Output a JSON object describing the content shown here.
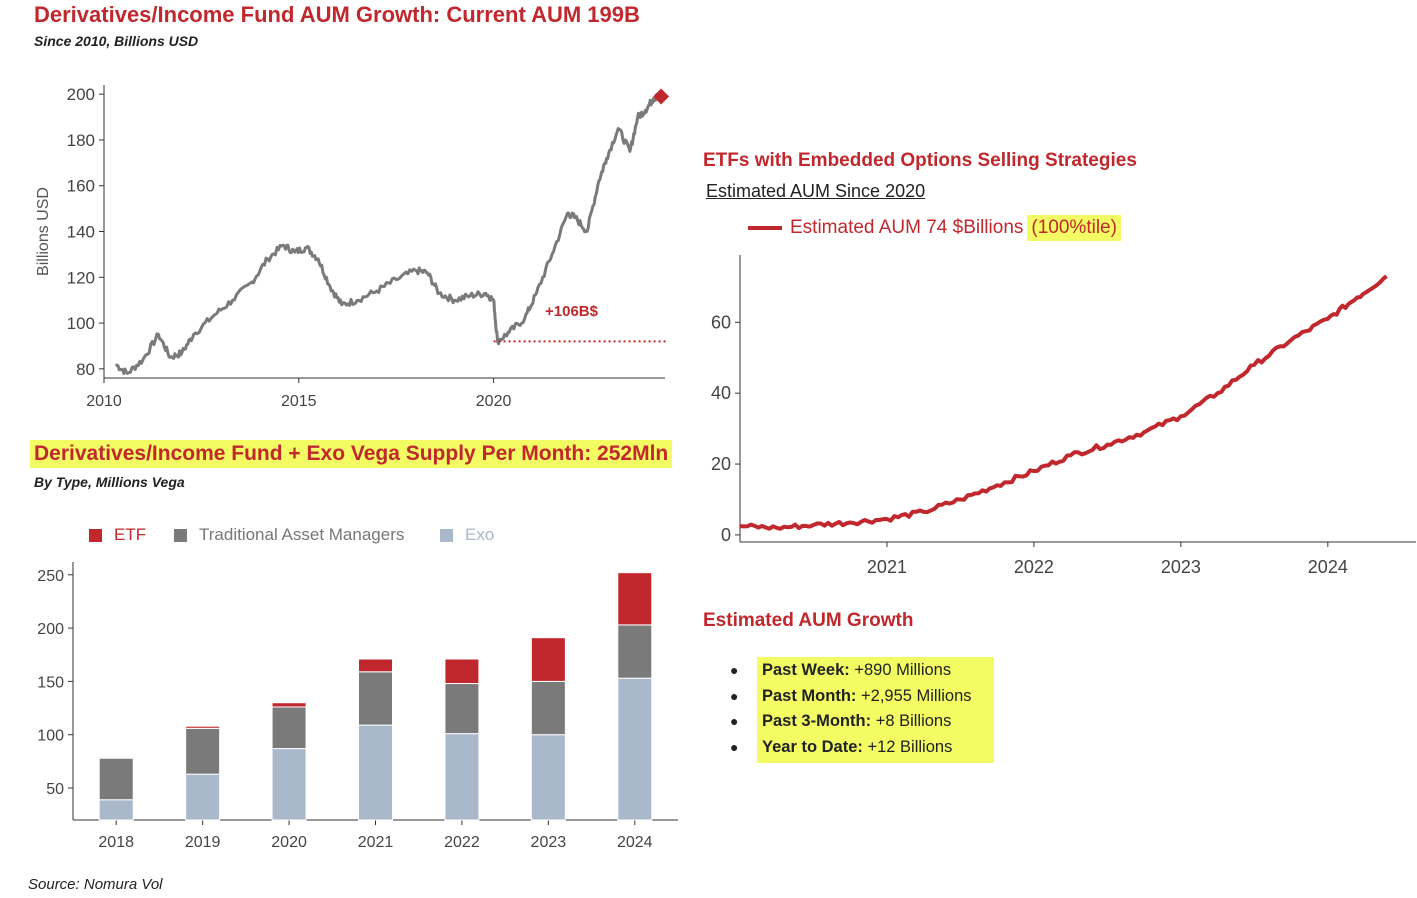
{
  "colors": {
    "red": "#c0282d",
    "grey": "#7a7a7a",
    "exo": "#aab8cc",
    "highlight": "#f4fc63"
  },
  "panel1": {
    "title": "Derivatives/Income Fund AUM Growth: Current AUM 199B",
    "subtitle": "Since 2010, Billions USD",
    "annotation": "+106B$"
  },
  "panel2": {
    "title": "Derivatives/Income Fund + Exo Vega Supply Per Month: 252Mln",
    "subtitle": "By Type, Millions Vega",
    "legend": [
      "ETF",
      "Traditional Asset Managers",
      "Exo"
    ]
  },
  "panel3": {
    "title": "ETFs with Embedded Options Selling Strategies",
    "subtitle": "Estimated AUM Since 2020",
    "legend_label": "Estimated AUM 74 $Billions",
    "legend_highlight": "(100%tile)"
  },
  "growth": {
    "title": "Estimated AUM Growth",
    "items": [
      {
        "label": "Past Week:",
        "value": "+890 Millions"
      },
      {
        "label": "Past Month:",
        "value": "+2,955 Millions"
      },
      {
        "label": "Past 3-Month:",
        "value": "+8 Billions"
      },
      {
        "label": "Year to Date:",
        "value": "+12 Billions"
      }
    ]
  },
  "source": "Source: Nomura Vol",
  "chart_data": [
    {
      "type": "line",
      "title": "Derivatives/Income Fund AUM Growth: Current AUM 199B",
      "xlabel": "",
      "ylabel": "Billions USD",
      "xlim": [
        2010,
        2024.4
      ],
      "ylim": [
        76,
        204
      ],
      "xticks": [
        2010,
        2015,
        2020
      ],
      "yticks": [
        80,
        100,
        120,
        140,
        160,
        180,
        200
      ],
      "series": [
        {
          "name": "AUM",
          "x": [
            2010.3,
            2010.6,
            2011.0,
            2011.4,
            2011.7,
            2012.0,
            2012.3,
            2012.8,
            2013.3,
            2013.8,
            2014.2,
            2014.6,
            2014.9,
            2015.2,
            2015.5,
            2015.8,
            2016.1,
            2016.5,
            2017.0,
            2017.5,
            2018.0,
            2018.3,
            2018.6,
            2019.0,
            2019.4,
            2019.8,
            2020.0,
            2020.1,
            2020.4,
            2020.8,
            2021.1,
            2021.5,
            2021.9,
            2022.1,
            2022.4,
            2022.7,
            2022.9,
            2023.2,
            2023.5,
            2023.7,
            2023.9,
            2024.1,
            2024.2
          ],
          "y": [
            82,
            78,
            84,
            95,
            85,
            87,
            95,
            103,
            110,
            118,
            128,
            134,
            131,
            133,
            128,
            116,
            108,
            110,
            114,
            119,
            123,
            122,
            113,
            110,
            112,
            113,
            110,
            92,
            96,
            102,
            113,
            130,
            148,
            146,
            140,
            162,
            172,
            185,
            175,
            190,
            193,
            198,
            199
          ]
        }
      ],
      "markers": [
        {
          "x": 2024.3,
          "y": 199,
          "shape": "diamond"
        }
      ],
      "reference_line": {
        "y": 92,
        "x_range": [
          2020.0,
          2024.2
        ],
        "label": "+106B$"
      }
    },
    {
      "type": "bar",
      "stacked": true,
      "title": "Derivatives/Income Fund + Exo Vega Supply Per Month: 252Mln",
      "xlabel": "",
      "ylabel": "",
      "categories": [
        "2018",
        "2019",
        "2020",
        "2021",
        "2022",
        "2023",
        "2024"
      ],
      "ylim": [
        20,
        262
      ],
      "yticks": [
        50,
        100,
        150,
        200,
        250
      ],
      "series": [
        {
          "name": "Exo",
          "values": [
            39,
            63,
            87,
            109,
            101,
            100,
            153
          ]
        },
        {
          "name": "Traditional Asset Managers",
          "values": [
            39,
            43,
            39,
            50,
            47,
            50,
            50
          ]
        },
        {
          "name": "ETF",
          "values": [
            1,
            2,
            4,
            12,
            23,
            41,
            49
          ]
        }
      ]
    },
    {
      "type": "line",
      "title": "ETFs with Embedded Options Selling Strategies",
      "xlabel": "",
      "ylabel": "",
      "xlim": [
        2020.0,
        2024.6
      ],
      "ylim": [
        -2,
        79
      ],
      "xticks": [
        2021,
        2022,
        2023,
        2024
      ],
      "yticks": [
        0,
        20,
        40,
        60
      ],
      "series": [
        {
          "name": "Estimated AUM 74 $Billions",
          "x": [
            2020.0,
            2020.25,
            2020.5,
            2020.75,
            2021.0,
            2021.25,
            2021.5,
            2021.75,
            2022.0,
            2022.25,
            2022.5,
            2022.75,
            2023.0,
            2023.25,
            2023.5,
            2023.75,
            2024.0,
            2024.2,
            2024.4
          ],
          "y": [
            2.5,
            2.0,
            2.8,
            3.5,
            4.5,
            6.5,
            10.0,
            14.0,
            18.0,
            22.5,
            25.5,
            29.0,
            33.5,
            40.0,
            48.0,
            55.0,
            61.0,
            67.0,
            73.0
          ]
        }
      ]
    }
  ]
}
